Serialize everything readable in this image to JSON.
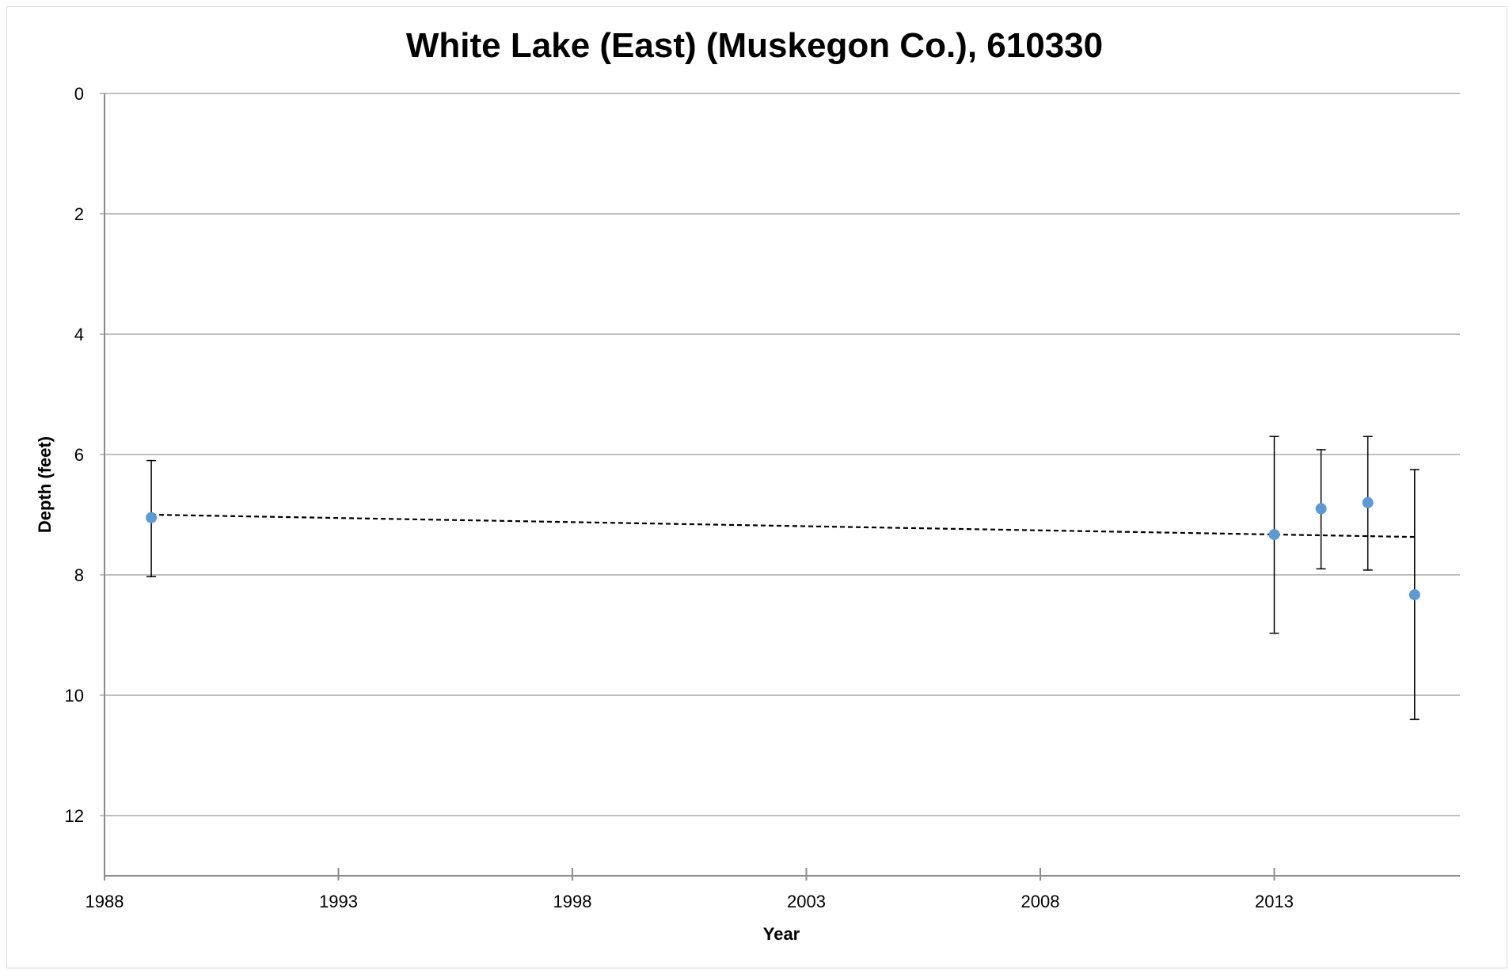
{
  "chart_data": {
    "type": "scatter",
    "title": "White Lake (East) (Muskegon Co.), 610330",
    "xlabel": "Year",
    "ylabel": "Depth (feet)",
    "xlim": [
      1988,
      2017
    ],
    "ylim": [
      0,
      13
    ],
    "y_inverted": true,
    "x_ticks": [
      "1988",
      "1993",
      "1998",
      "2003",
      "2008",
      "2013"
    ],
    "y_ticks": [
      "0",
      "2",
      "4",
      "6",
      "8",
      "10",
      "12"
    ],
    "grid": "horizontal",
    "legend": "none",
    "marker_color": "#5b9bd5",
    "trendline": {
      "style": "dashed",
      "color": "#000000",
      "points": [
        {
          "x": 1989,
          "y": 7.0
        },
        {
          "x": 2016,
          "y": 7.37
        }
      ]
    },
    "points": [
      {
        "x": 1989,
        "y": 7.05,
        "low": 6.1,
        "high": 8.03
      },
      {
        "x": 2013,
        "y": 7.33,
        "low": 5.7,
        "high": 8.97
      },
      {
        "x": 2014,
        "y": 6.9,
        "low": 5.92,
        "high": 7.9
      },
      {
        "x": 2015,
        "y": 6.8,
        "low": 5.7,
        "high": 7.92
      },
      {
        "x": 2016,
        "y": 8.33,
        "low": 6.25,
        "high": 10.4
      }
    ]
  }
}
